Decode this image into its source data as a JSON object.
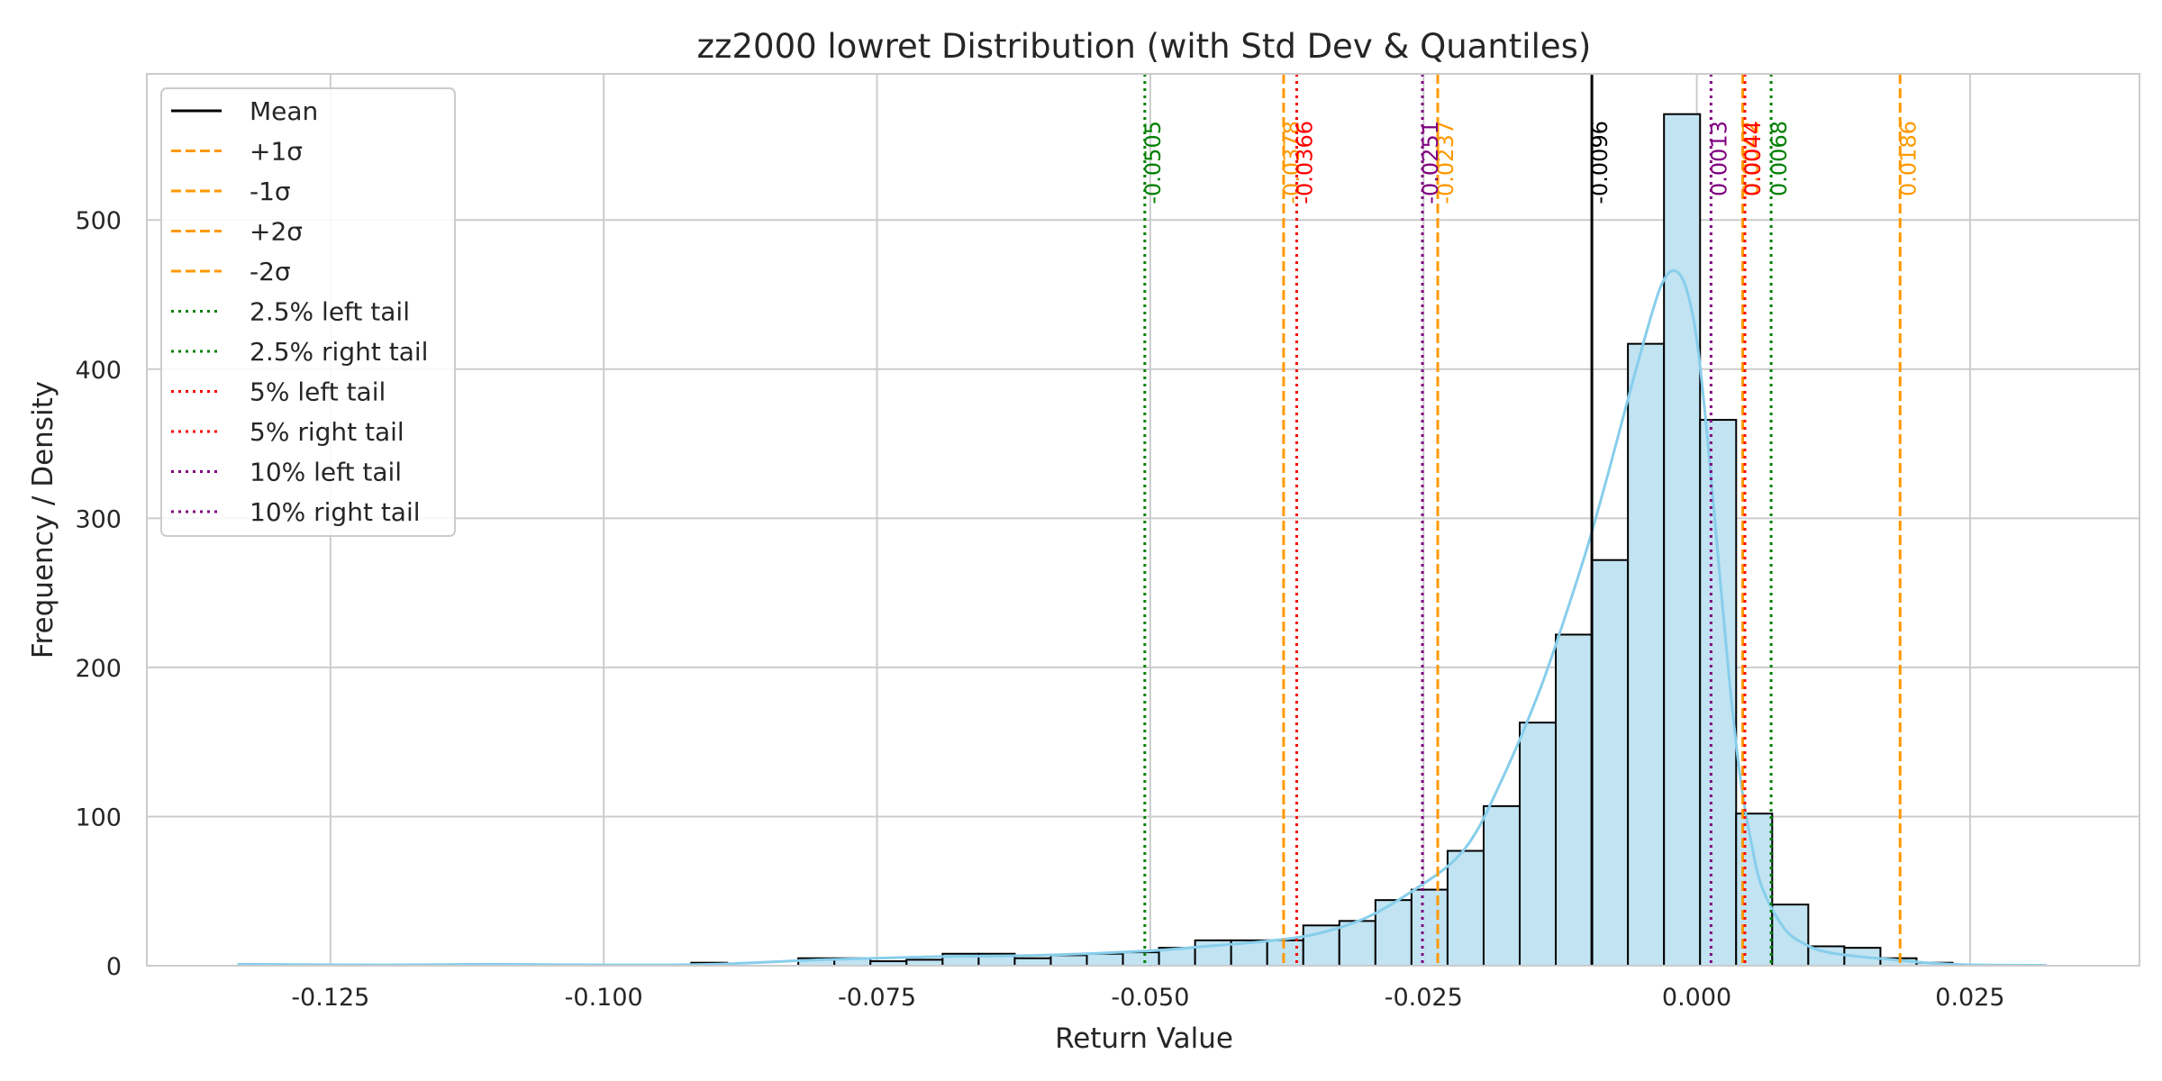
{
  "chart_data": {
    "type": "histogram",
    "title": "zz2000 lowret Distribution (with Std Dev & Quantiles)",
    "xlabel": "Return Value",
    "ylabel": "Frequency / Density",
    "xlim": [
      -0.1418,
      0.0405
    ],
    "ylim": [
      0,
      598
    ],
    "xticks": [
      -0.125,
      -0.1,
      -0.075,
      -0.05,
      -0.025,
      0.0,
      0.025
    ],
    "xtick_labels": [
      "-0.125",
      "-0.100",
      "-0.075",
      "-0.050",
      "-0.025",
      "0.000",
      "0.025"
    ],
    "yticks": [
      0,
      100,
      200,
      300,
      400,
      500
    ],
    "ytick_labels": [
      "0",
      "100",
      "200",
      "300",
      "400",
      "500"
    ],
    "grid": true,
    "legend_position": "top-left",
    "bin_width": 0.0033,
    "bins": [
      {
        "x0": -0.092,
        "count": 2
      },
      {
        "x0": -0.0822,
        "count": 5
      },
      {
        "x0": -0.0789,
        "count": 5
      },
      {
        "x0": -0.0756,
        "count": 3
      },
      {
        "x0": -0.0723,
        "count": 4
      },
      {
        "x0": -0.069,
        "count": 8
      },
      {
        "x0": -0.0657,
        "count": 8
      },
      {
        "x0": -0.0624,
        "count": 5
      },
      {
        "x0": -0.0591,
        "count": 7
      },
      {
        "x0": -0.0558,
        "count": 8
      },
      {
        "x0": -0.0525,
        "count": 9
      },
      {
        "x0": -0.0492,
        "count": 12
      },
      {
        "x0": -0.0459,
        "count": 17
      },
      {
        "x0": -0.0426,
        "count": 17
      },
      {
        "x0": -0.0393,
        "count": 17
      },
      {
        "x0": -0.036,
        "count": 27
      },
      {
        "x0": -0.0327,
        "count": 30
      },
      {
        "x0": -0.0294,
        "count": 44
      },
      {
        "x0": -0.0261,
        "count": 51
      },
      {
        "x0": -0.0228,
        "count": 77
      },
      {
        "x0": -0.0195,
        "count": 107
      },
      {
        "x0": -0.0162,
        "count": 163
      },
      {
        "x0": -0.0129,
        "count": 222
      },
      {
        "x0": -0.0096,
        "count": 272
      },
      {
        "x0": -0.0063,
        "count": 417
      },
      {
        "x0": -0.003,
        "count": 571
      },
      {
        "x0": 0.0003,
        "count": 366
      },
      {
        "x0": 0.0036,
        "count": 102
      },
      {
        "x0": 0.0069,
        "count": 41
      },
      {
        "x0": 0.0102,
        "count": 13
      },
      {
        "x0": 0.0135,
        "count": 12
      },
      {
        "x0": 0.0168,
        "count": 5
      },
      {
        "x0": 0.0201,
        "count": 2
      }
    ],
    "kde": {
      "name": "density",
      "x": [
        -0.1335,
        -0.12,
        -0.11,
        -0.1,
        -0.09,
        -0.08,
        -0.07,
        -0.06,
        -0.05,
        -0.045,
        -0.04,
        -0.035,
        -0.03,
        -0.025,
        -0.022,
        -0.02,
        -0.018,
        -0.016,
        -0.014,
        -0.012,
        -0.01,
        -0.008,
        -0.006,
        -0.004,
        -0.003,
        -0.002,
        -0.001,
        0.0,
        0.001,
        0.002,
        0.003,
        0.004,
        0.005,
        0.006,
        0.008,
        0.01,
        0.012,
        0.015,
        0.018,
        0.022,
        0.026,
        0.032
      ],
      "y": [
        1,
        0.5,
        1,
        0.5,
        1,
        4,
        6,
        7,
        10,
        13,
        16,
        21,
        33,
        55,
        72,
        92,
        122,
        155,
        192,
        235,
        281,
        333,
        388,
        440,
        460,
        466,
        455,
        420,
        352,
        270,
        190,
        125,
        82,
        52,
        25,
        14,
        9,
        6,
        4,
        1.5,
        0.5,
        0.3
      ]
    },
    "vlines": [
      {
        "label": "Mean",
        "value": -0.0096,
        "value_label": "-0.0096",
        "color": "#000000",
        "style": "solid"
      },
      {
        "label": "+1σ",
        "value": -0.0237,
        "value_label": "-0.0237",
        "color": "#ff9900",
        "style": "dashed"
      },
      {
        "label": "-1σ",
        "value": 0.0042,
        "value_label": "0.0042",
        "color": "#ff9900",
        "style": "dashed"
      },
      {
        "label": "+2σ",
        "value": -0.0378,
        "value_label": "-0.0378",
        "color": "#ff9900",
        "style": "dashed"
      },
      {
        "label": "-2σ",
        "value": 0.0186,
        "value_label": "0.0186",
        "color": "#ff9900",
        "style": "dashed"
      },
      {
        "label": "2.5% left tail",
        "value": -0.0505,
        "value_label": "-0.0505",
        "color": "#008000",
        "style": "dotted"
      },
      {
        "label": "2.5% right tail",
        "value": 0.0068,
        "value_label": "0.0068",
        "color": "#008000",
        "style": "dotted"
      },
      {
        "label": "5% left tail",
        "value": -0.0366,
        "value_label": "-0.0366",
        "color": "#ff0000",
        "style": "dotted"
      },
      {
        "label": "5% right tail",
        "value": 0.0044,
        "value_label": "0.0044",
        "color": "#ff0000",
        "style": "dotted"
      },
      {
        "label": "10% left tail",
        "value": -0.0251,
        "value_label": "-0.0251",
        "color": "#800080",
        "style": "dotted"
      },
      {
        "label": "10% right tail",
        "value": 0.0013,
        "value_label": "0.0013",
        "color": "#800080",
        "style": "dotted"
      }
    ],
    "colors": {
      "bar_fill": "#c1e3f2",
      "bar_edge": "#000000",
      "kde": "#87ceeb",
      "grid": "#cccccc",
      "axes_edge": "#cccccc",
      "legend_edge": "#cccccc"
    }
  }
}
